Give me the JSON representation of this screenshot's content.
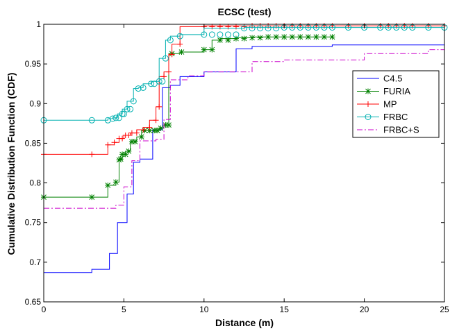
{
  "chart_data": {
    "type": "line",
    "title": "ECSC (test)",
    "xlabel": "Distance (m)",
    "ylabel": "Cumulative Distribution Function (CDF)",
    "xlim": [
      0,
      25
    ],
    "ylim": [
      0.65,
      1
    ],
    "xticks": [
      0,
      5,
      10,
      15,
      20,
      25
    ],
    "yticks": [
      0.65,
      0.7,
      0.75,
      0.8,
      0.85,
      0.9,
      0.95,
      1
    ],
    "xtick_labels": [
      "0",
      "5",
      "10",
      "15",
      "20",
      "25"
    ],
    "ytick_labels": [
      "0.65",
      "0.7",
      "0.75",
      "0.8",
      "0.85",
      "0.9",
      "0.95",
      "1"
    ],
    "grid": false,
    "legend_position": "right",
    "series": [
      {
        "name": "C4.5",
        "color": "#0000ff",
        "dash": "solid",
        "marker": "none",
        "x": [
          0,
          3.0,
          3.0,
          4.1,
          4.1,
          4.6,
          4.6,
          5.2,
          5.2,
          5.6,
          5.6,
          6.0,
          6.0,
          6.8,
          6.8,
          7.4,
          7.4,
          7.9,
          7.9,
          8.5,
          8.5,
          10.0,
          10.0,
          12.0,
          12.0,
          13.0,
          13.0,
          18.0,
          18.0,
          25.0
        ],
        "y": [
          0.687,
          0.687,
          0.691,
          0.691,
          0.711,
          0.711,
          0.75,
          0.75,
          0.786,
          0.786,
          0.826,
          0.826,
          0.83,
          0.83,
          0.867,
          0.867,
          0.92,
          0.92,
          0.923,
          0.923,
          0.934,
          0.934,
          0.94,
          0.94,
          0.969,
          0.969,
          0.972,
          0.972,
          0.974,
          0.974
        ]
      },
      {
        "name": "FURIA",
        "color": "#008000",
        "dash": "solid",
        "marker": "star",
        "x": [
          0,
          3.0,
          3.0,
          4.0,
          4.0,
          4.5,
          4.5,
          4.7,
          4.7,
          4.9,
          4.9,
          5.1,
          5.1,
          5.4,
          5.4,
          5.8,
          5.8,
          6.1,
          6.1,
          6.5,
          6.5,
          7.0,
          7.0,
          7.5,
          7.5,
          7.8,
          7.8,
          8.5,
          8.5,
          10.0,
          10.0,
          10.5,
          10.5,
          11.0,
          11.0,
          12.0,
          12.0,
          13.0,
          13.0,
          14.0,
          14.5,
          15.0,
          15.5,
          16.0,
          16.5,
          17.0,
          17.5,
          18.0
        ],
        "y": [
          0.782,
          0.782,
          0.782,
          0.782,
          0.797,
          0.797,
          0.801,
          0.801,
          0.829,
          0.829,
          0.836,
          0.836,
          0.84,
          0.84,
          0.852,
          0.852,
          0.858,
          0.858,
          0.866,
          0.866,
          0.866,
          0.866,
          0.869,
          0.869,
          0.873,
          0.873,
          0.963,
          0.963,
          0.965,
          0.965,
          0.968,
          0.968,
          0.98,
          0.98,
          0.982,
          0.982,
          0.983,
          0.983,
          0.984,
          0.984,
          0.984,
          0.984,
          0.984,
          0.984,
          0.984,
          0.984,
          0.984,
          0.984
        ],
        "markers_x": [
          0,
          3.0,
          4.0,
          4.5,
          4.7,
          4.8,
          4.9,
          5.1,
          5.3,
          5.5,
          5.7,
          6.1,
          6.3,
          6.6,
          6.9,
          7.1,
          7.3,
          7.6,
          7.8,
          8.0,
          8.6,
          10.0,
          10.5,
          11.0,
          11.5,
          12.0,
          12.5,
          13.0,
          13.5,
          14.0,
          14.5,
          15.0,
          15.5,
          16.0,
          16.5,
          17.0,
          17.5,
          18.0
        ],
        "markers_y": [
          0.782,
          0.782,
          0.797,
          0.801,
          0.829,
          0.83,
          0.836,
          0.836,
          0.84,
          0.852,
          0.852,
          0.858,
          0.866,
          0.866,
          0.866,
          0.866,
          0.869,
          0.873,
          0.873,
          0.963,
          0.965,
          0.968,
          0.968,
          0.98,
          0.98,
          0.982,
          0.982,
          0.983,
          0.983,
          0.984,
          0.984,
          0.984,
          0.984,
          0.984,
          0.984,
          0.984,
          0.984,
          0.984
        ]
      },
      {
        "name": "MP",
        "color": "#ff0000",
        "dash": "solid",
        "marker": "plus",
        "x": [
          0,
          3.0,
          3.0,
          4.0,
          4.0,
          4.4,
          4.4,
          4.7,
          4.7,
          5.0,
          5.0,
          5.4,
          5.4,
          5.8,
          5.8,
          6.2,
          6.2,
          6.6,
          6.6,
          7.0,
          7.0,
          7.2,
          7.2,
          7.5,
          7.5,
          7.8,
          7.8,
          8.0,
          8.0,
          8.5,
          8.5,
          10.0,
          10.0,
          25.0
        ],
        "y": [
          0.836,
          0.836,
          0.836,
          0.836,
          0.848,
          0.848,
          0.851,
          0.851,
          0.856,
          0.856,
          0.86,
          0.86,
          0.863,
          0.863,
          0.867,
          0.867,
          0.87,
          0.87,
          0.879,
          0.879,
          0.896,
          0.896,
          0.934,
          0.934,
          0.94,
          0.94,
          0.962,
          0.962,
          0.975,
          0.975,
          0.997,
          0.997,
          0.998,
          0.998
        ],
        "markers_x": [
          0,
          3.0,
          4.0,
          4.4,
          4.7,
          4.9,
          5.1,
          5.3,
          5.5,
          5.8,
          6.2,
          6.6,
          7.0,
          7.2,
          7.5,
          7.8,
          8.0,
          8.5,
          10.0,
          10.5,
          11.0,
          11.5,
          12.0,
          12.5,
          13.0,
          13.5,
          14.0,
          14.5,
          15.0,
          15.5,
          16.0,
          16.5,
          17.0,
          17.5,
          18.0,
          19.0,
          20.0,
          21.0,
          21.5,
          22.0,
          22.5,
          23.0,
          24.0,
          25.0
        ],
        "markers_y": [
          0.836,
          0.836,
          0.848,
          0.851,
          0.856,
          0.856,
          0.86,
          0.86,
          0.863,
          0.863,
          0.867,
          0.87,
          0.879,
          0.896,
          0.934,
          0.94,
          0.962,
          0.975,
          0.997,
          0.997,
          0.997,
          0.997,
          0.997,
          0.997,
          0.998,
          0.998,
          0.998,
          0.998,
          0.998,
          0.998,
          0.998,
          0.998,
          0.998,
          0.998,
          0.998,
          0.998,
          0.998,
          0.998,
          0.998,
          0.998,
          0.998,
          0.998,
          0.998,
          0.998
        ]
      },
      {
        "name": "FRBC",
        "color": "#00b0b0",
        "dash": "solid",
        "marker": "circle",
        "x": [
          0,
          3.0,
          3.0,
          4.0,
          4.0,
          4.3,
          4.3,
          4.6,
          4.6,
          4.9,
          4.9,
          5.2,
          5.2,
          5.6,
          5.6,
          5.9,
          5.9,
          6.2,
          6.2,
          6.7,
          6.7,
          7.2,
          7.2,
          7.6,
          7.6,
          7.9,
          7.9,
          8.5,
          8.5,
          10.0,
          10.0,
          12.5,
          12.5,
          25.0
        ],
        "y": [
          0.879,
          0.879,
          0.879,
          0.879,
          0.881,
          0.881,
          0.882,
          0.882,
          0.887,
          0.887,
          0.893,
          0.893,
          0.903,
          0.903,
          0.919,
          0.919,
          0.92,
          0.92,
          0.925,
          0.925,
          0.928,
          0.928,
          0.957,
          0.957,
          0.98,
          0.98,
          0.985,
          0.985,
          0.987,
          0.987,
          0.995,
          0.995,
          0.996,
          0.996
        ],
        "markers_x": [
          0,
          3.0,
          4.0,
          4.3,
          4.5,
          4.7,
          4.9,
          5.0,
          5.2,
          5.4,
          5.6,
          5.9,
          6.2,
          6.7,
          6.9,
          7.2,
          7.4,
          7.6,
          7.9,
          8.5,
          10.0,
          10.5,
          11.0,
          11.5,
          12.0,
          12.5,
          13.0,
          13.5,
          14.0,
          14.5,
          15.0,
          15.5,
          16.0,
          16.5,
          17.0,
          17.5,
          18.0,
          19.0,
          20.0,
          21.0,
          21.5,
          22.0,
          22.5,
          23.0,
          24.0,
          25.0
        ],
        "markers_y": [
          0.879,
          0.879,
          0.879,
          0.881,
          0.882,
          0.882,
          0.887,
          0.887,
          0.893,
          0.893,
          0.903,
          0.919,
          0.92,
          0.925,
          0.925,
          0.928,
          0.928,
          0.957,
          0.98,
          0.985,
          0.987,
          0.987,
          0.987,
          0.987,
          0.987,
          0.995,
          0.995,
          0.995,
          0.995,
          0.995,
          0.996,
          0.996,
          0.996,
          0.996,
          0.996,
          0.996,
          0.996,
          0.996,
          0.996,
          0.996,
          0.996,
          0.996,
          0.996,
          0.996,
          0.996,
          0.996
        ]
      },
      {
        "name": "FRBC+S",
        "color": "#cc00cc",
        "dash": "dashdot",
        "marker": "none",
        "x": [
          0,
          4.5,
          4.5,
          5.0,
          5.0,
          5.5,
          5.5,
          6.0,
          6.0,
          7.0,
          7.0,
          7.5,
          7.5,
          7.9,
          7.9,
          9.0,
          9.0,
          10.0,
          10.0,
          13.0,
          13.0,
          15.0,
          15.0,
          20.0,
          20.0,
          24.0,
          24.0,
          25.0
        ],
        "y": [
          0.768,
          0.768,
          0.772,
          0.772,
          0.795,
          0.795,
          0.828,
          0.828,
          0.853,
          0.853,
          0.855,
          0.855,
          0.88,
          0.88,
          0.93,
          0.93,
          0.935,
          0.935,
          0.94,
          0.94,
          0.953,
          0.953,
          0.955,
          0.955,
          0.963,
          0.963,
          0.968,
          0.968
        ]
      }
    ]
  }
}
